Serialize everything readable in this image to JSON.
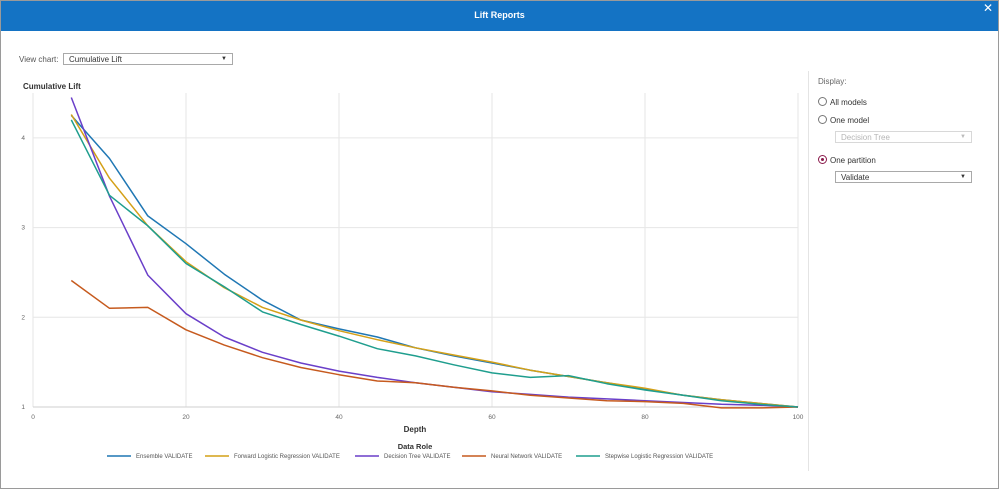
{
  "window": {
    "title": "Lift Reports",
    "close_glyph": "✕"
  },
  "controls": {
    "view_chart_label": "View chart:",
    "view_chart_value": "Cumulative Lift",
    "display_label": "Display:",
    "radios": [
      {
        "label": "All models",
        "checked": false
      },
      {
        "label": "One model",
        "checked": false
      },
      {
        "label": "One partition",
        "checked": true
      }
    ],
    "model_select_value": "Decision Tree",
    "partition_select_value": "Validate"
  },
  "chart_data": {
    "type": "line",
    "ylabel": "Cumulative Lift",
    "xlabel": "Depth",
    "xlim": [
      0,
      100
    ],
    "ylim": [
      1,
      4.5
    ],
    "xticks": [
      "0",
      "20",
      "40",
      "60",
      "80",
      "100"
    ],
    "yticks": [
      "1",
      "2",
      "3",
      "4"
    ],
    "grid": true,
    "legend_title": "Data Role",
    "legend_position": "bottom",
    "x": [
      5,
      10,
      15,
      20,
      25,
      30,
      35,
      40,
      45,
      50,
      55,
      60,
      65,
      70,
      75,
      80,
      85,
      90,
      95,
      100
    ],
    "series": [
      {
        "name": "Ensemble VALIDATE",
        "color": "#1f77b4",
        "values": [
          4.25,
          3.77,
          3.13,
          2.82,
          2.48,
          2.19,
          1.97,
          1.87,
          1.78,
          1.66,
          1.57,
          1.49,
          1.41,
          1.34,
          1.27,
          1.2,
          1.13,
          1.08,
          1.04,
          1.0
        ]
      },
      {
        "name": "Forward Logistic Regression VALIDATE",
        "color": "#d4a017",
        "values": [
          4.26,
          3.55,
          3.02,
          2.62,
          2.33,
          2.11,
          1.97,
          1.85,
          1.75,
          1.66,
          1.58,
          1.5,
          1.41,
          1.34,
          1.27,
          1.21,
          1.13,
          1.08,
          1.04,
          1.0
        ]
      },
      {
        "name": "Decision Tree VALIDATE",
        "color": "#6a3fc9",
        "values": [
          4.45,
          3.35,
          2.47,
          2.04,
          1.78,
          1.61,
          1.49,
          1.4,
          1.33,
          1.27,
          1.22,
          1.17,
          1.14,
          1.11,
          1.09,
          1.07,
          1.05,
          1.03,
          1.02,
          1.0
        ]
      },
      {
        "name": "Neural Network VALIDATE",
        "color": "#c65a1e",
        "values": [
          2.41,
          2.1,
          2.11,
          1.86,
          1.69,
          1.55,
          1.44,
          1.36,
          1.29,
          1.27,
          1.22,
          1.18,
          1.13,
          1.1,
          1.07,
          1.06,
          1.04,
          0.99,
          0.99,
          1.0
        ]
      },
      {
        "name": "Stepwise Logistic Regression VALIDATE",
        "color": "#1f9e8e",
        "values": [
          4.2,
          3.36,
          3.02,
          2.6,
          2.34,
          2.06,
          1.92,
          1.79,
          1.65,
          1.57,
          1.47,
          1.38,
          1.33,
          1.35,
          1.26,
          1.19,
          1.13,
          1.07,
          1.03,
          1.0
        ]
      }
    ]
  }
}
